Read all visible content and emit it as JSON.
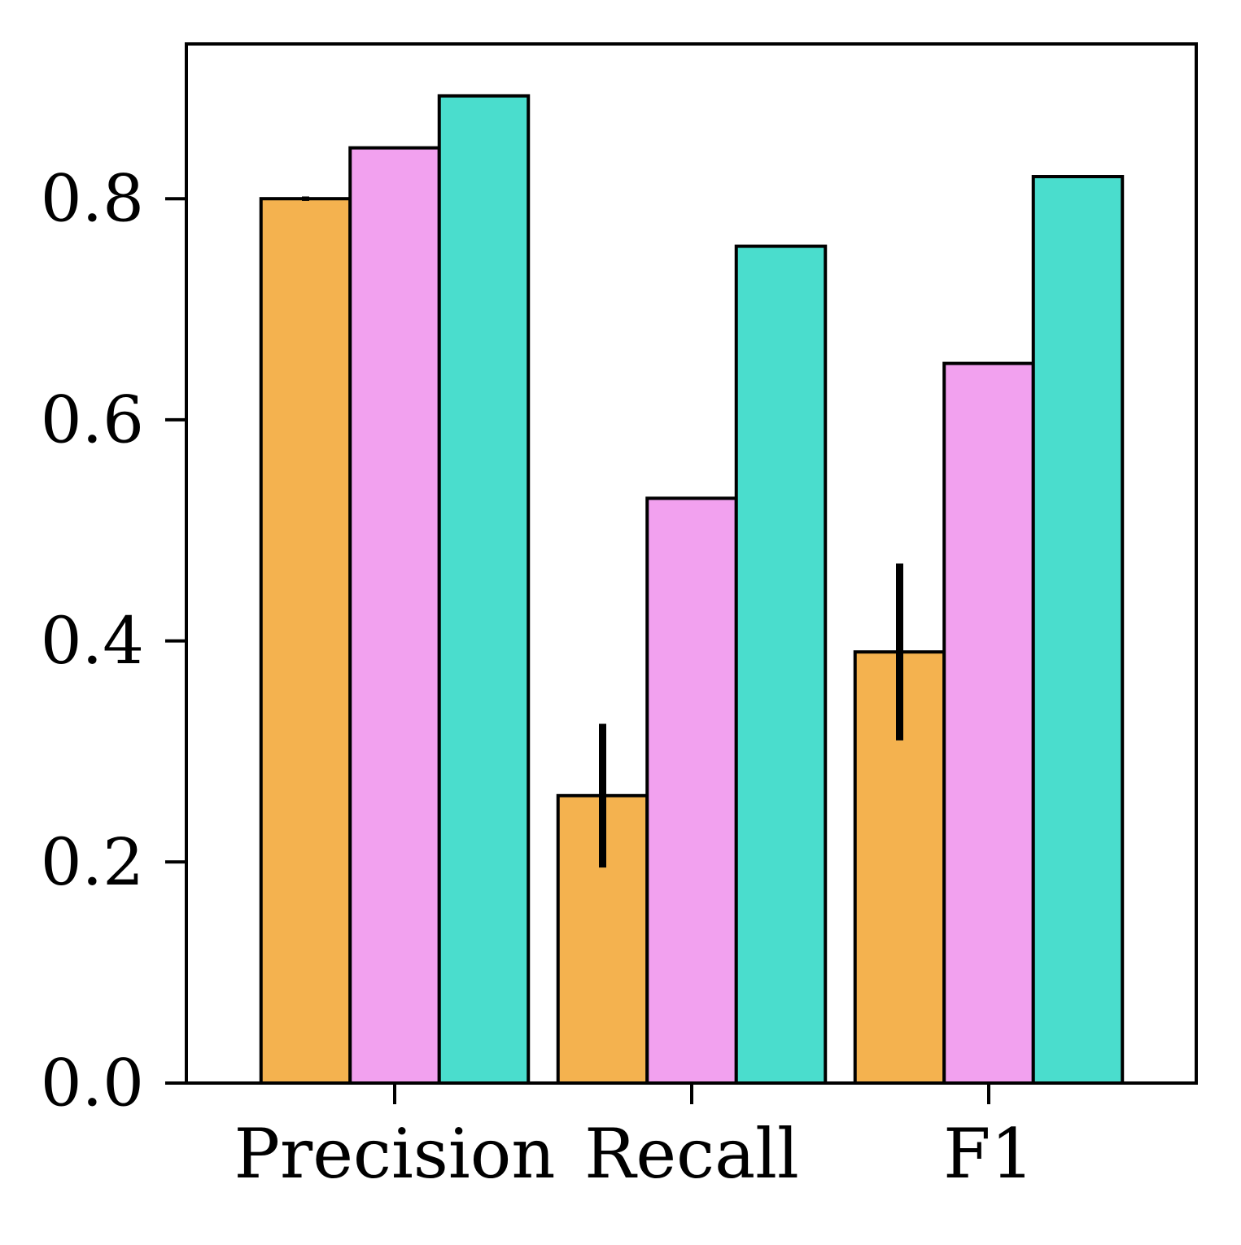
{
  "chart_data": {
    "type": "bar",
    "title": "",
    "xlabel": "",
    "ylabel": "",
    "categories": [
      "Precision",
      "Recall",
      "F1"
    ],
    "ylim": [
      0,
      0.94
    ],
    "yticks": [
      0.0,
      0.2,
      0.4,
      0.6,
      0.8
    ],
    "ytick_labels": [
      "0.0",
      "0.2",
      "0.4",
      "0.6",
      "0.8"
    ],
    "grid": false,
    "legend": "none",
    "series": [
      {
        "name": "series-1",
        "color": "#F4B24F",
        "values": [
          0.8,
          0.26,
          0.39
        ],
        "errors": [
          0.002,
          0.065,
          0.08
        ]
      },
      {
        "name": "series-2",
        "color": "#F2A1EF",
        "values": [
          0.846,
          0.529,
          0.651
        ],
        "errors": [
          0,
          0,
          0
        ]
      },
      {
        "name": "series-3",
        "color": "#4ADDCD",
        "values": [
          0.893,
          0.757,
          0.82
        ],
        "errors": [
          0,
          0,
          0
        ]
      }
    ]
  }
}
